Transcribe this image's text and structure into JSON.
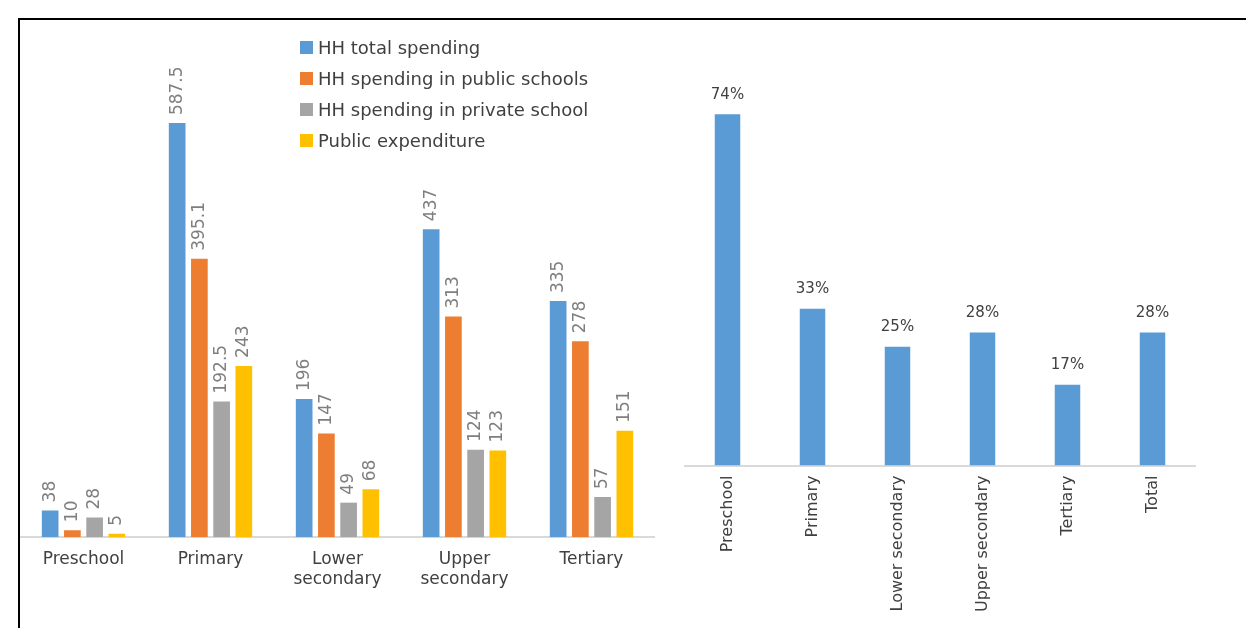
{
  "chart_data": [
    {
      "type": "bar",
      "categories": [
        "Preschool",
        "Primary",
        "Lower secondary",
        "Upper secondary",
        "Tertiary"
      ],
      "series": [
        {
          "name": "HH total spending",
          "color": "#5b9bd5",
          "values": [
            38,
            587.5,
            196,
            437,
            335
          ]
        },
        {
          "name": "HH spending in public schools",
          "color": "#ed7d31",
          "values": [
            10,
            395.1,
            147,
            313,
            278
          ]
        },
        {
          "name": "HH spending in private school",
          "color": "#a5a5a5",
          "values": [
            28,
            192.5,
            49,
            124,
            57
          ]
        },
        {
          "name": "Public expenditure",
          "color": "#ffc000",
          "values": [
            5,
            243,
            68,
            123,
            151
          ]
        }
      ],
      "data_labels": true,
      "legend": "top",
      "grid": false
    },
    {
      "type": "bar",
      "categories": [
        "Preschool",
        "Primary",
        "Lower secondary",
        "Upper secondary",
        "Tertiary",
        "Total"
      ],
      "values": [
        74,
        33,
        25,
        28,
        17,
        28
      ],
      "color": "#5b9bd5",
      "value_labels": [
        "74%",
        "33%",
        "25%",
        "28%",
        "17%",
        "28%"
      ],
      "grid": false
    }
  ]
}
